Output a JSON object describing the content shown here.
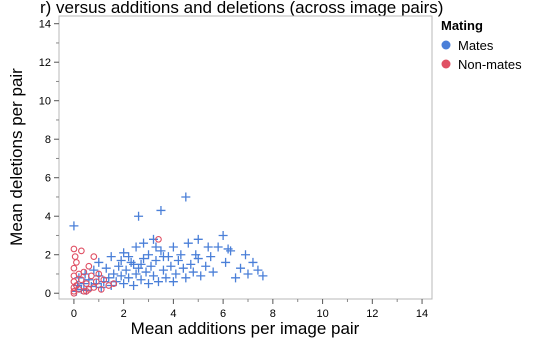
{
  "page": {
    "top_title_fragment": "r) versus additions and deletions (across image pairs)"
  },
  "chart_data": {
    "type": "scatter",
    "title": "",
    "xlabel": "Mean additions per image pair",
    "ylabel": "Mean deletions per pair",
    "xlim": [
      -0.6,
      14.4
    ],
    "ylim": [
      -0.3,
      14.4
    ],
    "xticks": [
      0,
      2,
      4,
      6,
      8,
      10,
      12,
      14
    ],
    "yticks": [
      0,
      2,
      4,
      6,
      8,
      10,
      12,
      14
    ],
    "grid": false,
    "legend": {
      "title": "Mating",
      "position": "top-right"
    },
    "series": [
      {
        "name": "Mates",
        "marker": "plus",
        "color": "#4a7fd8",
        "points": [
          [
            0,
            3.5
          ],
          [
            0.1,
            0.1
          ],
          [
            0.15,
            0.4
          ],
          [
            0.2,
            0.8
          ],
          [
            0.3,
            0.2
          ],
          [
            0.4,
            0.5
          ],
          [
            0.45,
            1.0
          ],
          [
            0.5,
            0.15
          ],
          [
            0.6,
            0.7
          ],
          [
            0.7,
            0.35
          ],
          [
            0.8,
            1.2
          ],
          [
            0.9,
            0.5
          ],
          [
            1.0,
            0.9
          ],
          [
            1.0,
            1.6
          ],
          [
            1.1,
            0.3
          ],
          [
            1.2,
            0.6
          ],
          [
            1.3,
            1.3
          ],
          [
            1.4,
            0.8
          ],
          [
            1.5,
            0.4
          ],
          [
            1.5,
            1.9
          ],
          [
            1.6,
            1.0
          ],
          [
            1.7,
            0.6
          ],
          [
            1.8,
            1.4
          ],
          [
            1.9,
            0.9
          ],
          [
            2.0,
            0.5
          ],
          [
            2.0,
            2.1
          ],
          [
            2.1,
            1.2
          ],
          [
            2.2,
            0.8
          ],
          [
            2.3,
            1.6
          ],
          [
            2.4,
            0.4
          ],
          [
            2.5,
            1.0
          ],
          [
            2.5,
            2.4
          ],
          [
            2.6,
            1.3
          ],
          [
            2.6,
            4.0
          ],
          [
            2.7,
            0.7
          ],
          [
            2.8,
            1.8
          ],
          [
            2.8,
            2.6
          ],
          [
            2.9,
            1.1
          ],
          [
            3.0,
            0.5
          ],
          [
            3.0,
            2.0
          ],
          [
            3.1,
            1.4
          ],
          [
            3.2,
            0.9
          ],
          [
            3.2,
            2.8
          ],
          [
            3.3,
            1.7
          ],
          [
            3.4,
            0.6
          ],
          [
            3.5,
            2.2
          ],
          [
            3.5,
            4.3
          ],
          [
            3.6,
            1.2
          ],
          [
            3.7,
            0.8
          ],
          [
            3.8,
            1.9
          ],
          [
            3.9,
            1.4
          ],
          [
            4.0,
            2.4
          ],
          [
            4.0,
            0.6
          ],
          [
            4.1,
            1.0
          ],
          [
            4.2,
            1.7
          ],
          [
            4.3,
            2.0
          ],
          [
            4.4,
            1.3
          ],
          [
            4.5,
            5.0
          ],
          [
            4.5,
            0.8
          ],
          [
            4.6,
            2.6
          ],
          [
            4.7,
            1.5
          ],
          [
            4.8,
            1.1
          ],
          [
            5.0,
            2.8
          ],
          [
            5.0,
            1.8
          ],
          [
            5.1,
            0.9
          ],
          [
            5.3,
            1.4
          ],
          [
            5.5,
            1.9
          ],
          [
            5.6,
            1.1
          ],
          [
            5.8,
            2.4
          ],
          [
            6.0,
            3.0
          ],
          [
            6.1,
            1.6
          ],
          [
            6.3,
            2.2
          ],
          [
            6.5,
            0.8
          ],
          [
            6.7,
            1.3
          ],
          [
            6.9,
            2.0
          ],
          [
            7.0,
            1.0
          ],
          [
            7.2,
            1.6
          ],
          [
            7.4,
            1.2
          ],
          [
            7.6,
            0.9
          ],
          [
            2.2,
            1.9
          ],
          [
            2.4,
            1.5
          ],
          [
            2.7,
            1.5
          ],
          [
            3.3,
            2.4
          ],
          [
            3.6,
            1.9
          ],
          [
            1.9,
            1.7
          ],
          [
            4.9,
            2.0
          ],
          [
            5.4,
            2.4
          ],
          [
            6.2,
            2.3
          ]
        ]
      },
      {
        "name": "Non-mates",
        "marker": "circle",
        "color": "#e05064",
        "points": [
          [
            0,
            2.3
          ],
          [
            0,
            1.3
          ],
          [
            0,
            0.9
          ],
          [
            0,
            0.6
          ],
          [
            0,
            0.3
          ],
          [
            0,
            0.1
          ],
          [
            0,
            0
          ],
          [
            0.05,
            1.9
          ],
          [
            0.1,
            0.4
          ],
          [
            0.1,
            1.6
          ],
          [
            0.2,
            0.2
          ],
          [
            0.3,
            2.2
          ],
          [
            0.3,
            0.7
          ],
          [
            0.4,
            0.1
          ],
          [
            0.4,
            1.1
          ],
          [
            0.5,
            0.5
          ],
          [
            0.6,
            0.2
          ],
          [
            0.7,
            0.9
          ],
          [
            0.8,
            1.9
          ],
          [
            0.8,
            0.3
          ],
          [
            0.9,
            0.6
          ],
          [
            1.0,
            1.0
          ],
          [
            1.1,
            0.2
          ],
          [
            1.2,
            0.7
          ],
          [
            1.4,
            0.4
          ],
          [
            3.4,
            2.8
          ],
          [
            0.2,
            1.0
          ],
          [
            0.5,
            0.1
          ],
          [
            1.6,
            0.5
          ],
          [
            0.6,
            1.4
          ]
        ]
      }
    ]
  }
}
